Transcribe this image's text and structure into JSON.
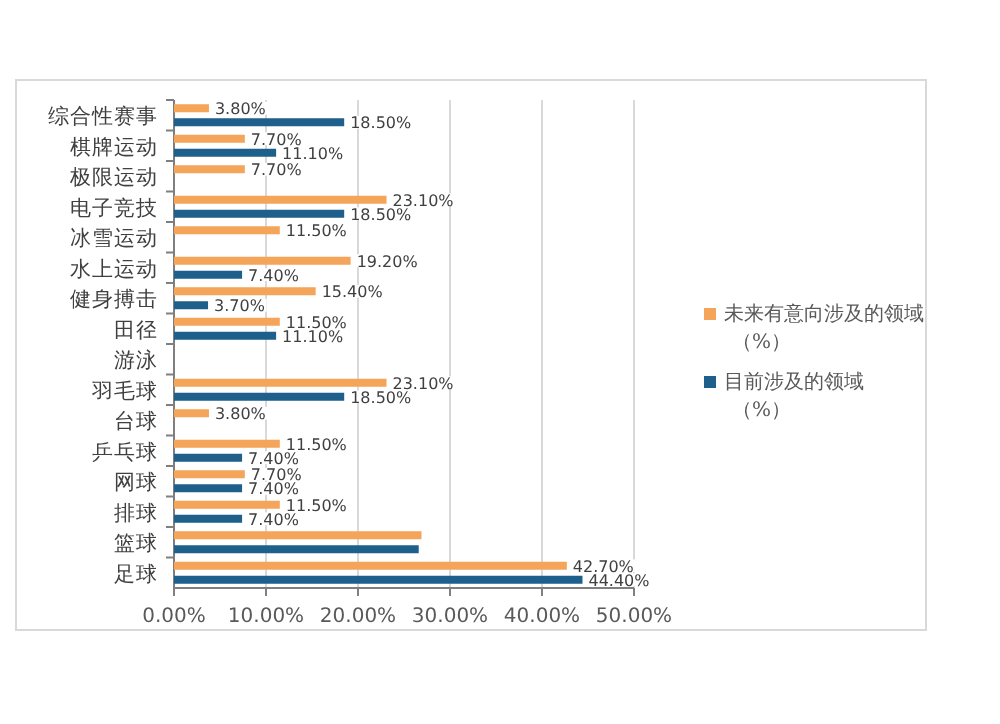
{
  "chart_data": {
    "type": "bar",
    "orientation": "horizontal",
    "categories": [
      "综合性赛事",
      "棋牌运动",
      "极限运动",
      "电子竞技",
      "冰雪运动",
      "水上运动",
      "健身搏击",
      "田径",
      "游泳",
      "羽毛球",
      "台球",
      "乒乓球",
      "网球",
      "排球",
      "篮球",
      "足球"
    ],
    "series": [
      {
        "name": "未来有意向涉及的领域（%）",
        "color": "#f5a55a",
        "values": [
          3.8,
          7.7,
          7.7,
          23.1,
          11.5,
          19.2,
          15.4,
          11.5,
          null,
          23.1,
          3.8,
          11.5,
          7.7,
          11.5,
          26.9,
          42.7
        ],
        "value_labels": [
          "3.80%",
          "7.70%",
          "7.70%",
          "23.10%",
          "11.50%",
          "19.20%",
          "15.40%",
          "11.50%",
          null,
          "23.10%",
          "3.80%",
          "11.50%",
          "7.70%",
          "11.50%",
          null,
          "42.70%"
        ]
      },
      {
        "name": "目前涉及的领域（%）",
        "color": "#1f5f8b",
        "values": [
          18.5,
          11.1,
          null,
          18.5,
          null,
          7.4,
          3.7,
          11.1,
          null,
          18.5,
          null,
          7.4,
          7.4,
          7.4,
          26.6,
          44.4
        ],
        "value_labels": [
          "18.50%",
          "11.10%",
          null,
          "18.50%",
          null,
          "7.40%",
          "3.70%",
          "11.10%",
          null,
          "18.50%",
          null,
          "7.40%",
          "7.40%",
          "7.40%",
          null,
          "44.40%"
        ]
      }
    ],
    "xlim": [
      0,
      50
    ],
    "xticks": [
      {
        "value": 0,
        "label": "0.00%"
      },
      {
        "value": 10,
        "label": "10.00%"
      },
      {
        "value": 20,
        "label": "20.00%"
      },
      {
        "value": 30,
        "label": "30.00%"
      },
      {
        "value": 40,
        "label": "40.00%"
      },
      {
        "value": 50,
        "label": "50.00%"
      }
    ],
    "grid": "x",
    "legend": "right"
  }
}
